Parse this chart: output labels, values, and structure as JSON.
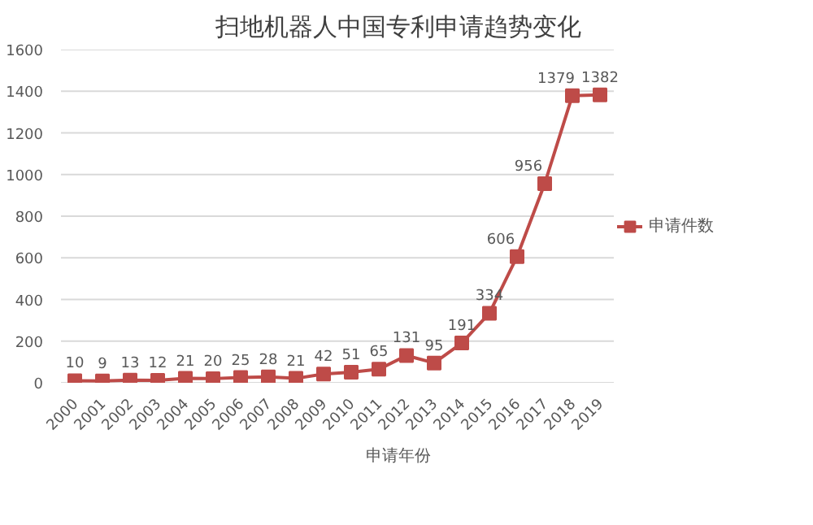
{
  "chart_data": {
    "type": "line",
    "title": "扫地机器人中国专利申请趋势变化",
    "xlabel": "申请年份",
    "categories": [
      "2000",
      "2001",
      "2002",
      "2003",
      "2004",
      "2005",
      "2006",
      "2007",
      "2008",
      "2009",
      "2010",
      "2011",
      "2012",
      "2013",
      "2014",
      "2015",
      "2016",
      "2017",
      "2018",
      "2019"
    ],
    "series": [
      {
        "name": "申请件数",
        "color": "#be4b48",
        "values": [
          10,
          9,
          13,
          12,
          21,
          20,
          25,
          28,
          21,
          42,
          51,
          65,
          131,
          95,
          191,
          334,
          606,
          956,
          1379,
          1382
        ]
      }
    ],
    "ylim": [
      0,
      1600
    ],
    "yticks": [
      0,
      200,
      400,
      600,
      800,
      1000,
      1200,
      1400,
      1600
    ],
    "grid": "y",
    "legend": "right",
    "marker": "square",
    "line_style": "solid",
    "data_labels": true
  }
}
